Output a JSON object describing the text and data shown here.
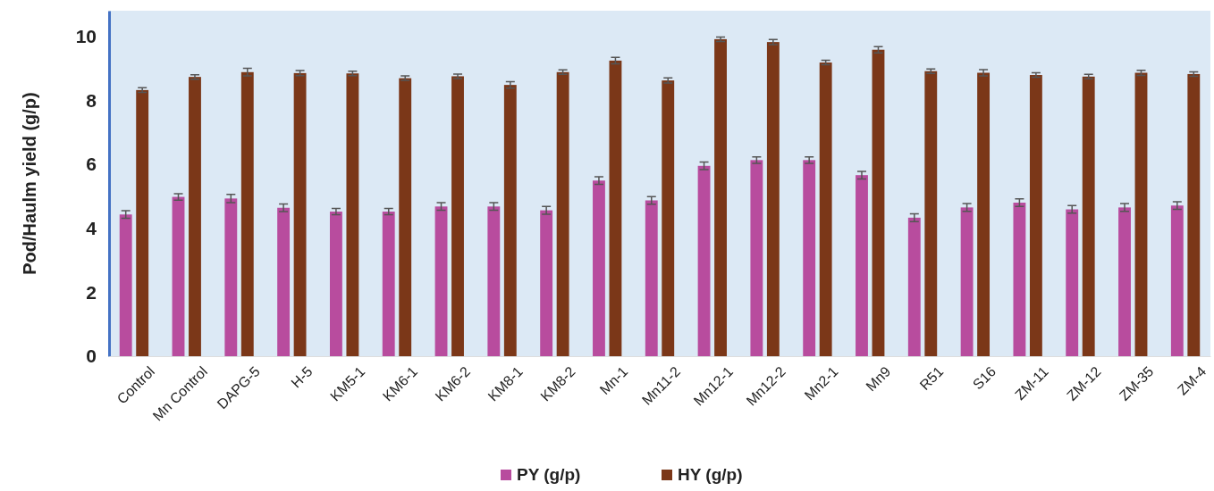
{
  "chart_data": {
    "type": "bar",
    "ylabel": "Pod/Haulm yield (g/p)",
    "categories": [
      "Control",
      "Mn Control",
      "DAPG-5",
      "H-5",
      "KM5-1",
      "KM6-1",
      "KM6-2",
      "KM8-1",
      "KM8-2",
      "Mn-1",
      "Mn11-2",
      "Mn12-1",
      "Mn12-2",
      "Mn2-1",
      "Mn9",
      "R51",
      "S16",
      "ZM-11",
      "ZM-12",
      "ZM-35",
      "ZM-4"
    ],
    "series": [
      {
        "name": "PY (g/p)",
        "color": "#b84c9e",
        "values": [
          4.43,
          4.98,
          4.93,
          4.64,
          4.52,
          4.52,
          4.68,
          4.68,
          4.56,
          5.49,
          4.87,
          5.95,
          6.13,
          6.13,
          5.66,
          4.33,
          4.65,
          4.8,
          4.59,
          4.65,
          4.71
        ],
        "errors": [
          0.12,
          0.1,
          0.13,
          0.12,
          0.1,
          0.1,
          0.12,
          0.12,
          0.12,
          0.12,
          0.12,
          0.12,
          0.1,
          0.1,
          0.12,
          0.12,
          0.12,
          0.12,
          0.12,
          0.12,
          0.12
        ]
      },
      {
        "name": "HY (g/p)",
        "color": "#7b3718",
        "values": [
          8.32,
          8.73,
          8.88,
          8.85,
          8.84,
          8.69,
          8.75,
          8.48,
          8.88,
          9.24,
          8.62,
          9.91,
          9.82,
          9.18,
          9.58,
          8.91,
          8.86,
          8.79,
          8.74,
          8.86,
          8.82
        ],
        "errors": [
          0.07,
          0.07,
          0.12,
          0.08,
          0.07,
          0.07,
          0.07,
          0.1,
          0.07,
          0.1,
          0.08,
          0.07,
          0.08,
          0.07,
          0.1,
          0.07,
          0.1,
          0.07,
          0.07,
          0.08,
          0.07
        ]
      }
    ],
    "ylim": [
      0,
      10.8
    ],
    "yticks": [
      0,
      2,
      4,
      6,
      8,
      10
    ],
    "grid": false,
    "legend": "bottom"
  }
}
